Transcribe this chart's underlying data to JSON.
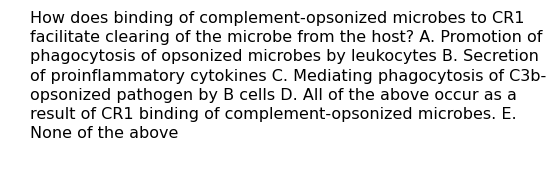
{
  "lines": [
    "How does binding of complement-opsonized microbes to CR1",
    "facilitate clearing of the microbe from the host? A. Promotion of",
    "phagocytosis of opsonized microbes by leukocytes B. Secretion",
    "of proinflammatory cytokines C. Mediating phagocytosis of C3b-",
    "opsonized pathogen by B cells D. All of the above occur as a",
    "result of CR1 binding of complement-opsonized microbes. E.",
    "None of the above"
  ],
  "background_color": "#ffffff",
  "text_color": "#000000",
  "font_size": 11.5,
  "fig_width": 5.58,
  "fig_height": 1.88,
  "dpi": 100
}
